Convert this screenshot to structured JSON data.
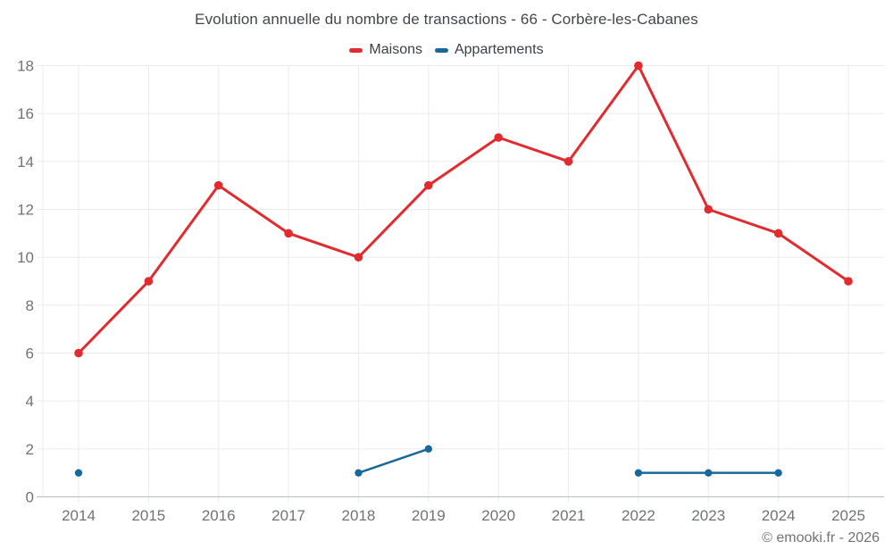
{
  "chart_data": {
    "type": "line",
    "title": "Evolution annuelle du nombre de transactions - 66 - Corbère-les-Cabanes",
    "x": [
      2014,
      2015,
      2016,
      2017,
      2018,
      2019,
      2020,
      2021,
      2022,
      2023,
      2024,
      2025
    ],
    "series": [
      {
        "name": "Maisons",
        "color": "#e12b2e",
        "values": [
          6,
          9,
          13,
          11,
          10,
          13,
          15,
          14,
          18,
          12,
          11,
          9
        ]
      },
      {
        "name": "Appartements",
        "color": "#17699b",
        "values": [
          1,
          null,
          null,
          null,
          1,
          2,
          null,
          null,
          1,
          1,
          1,
          null
        ]
      }
    ],
    "ylim": [
      0,
      18
    ],
    "yticks": [
      0,
      2,
      4,
      6,
      8,
      10,
      12,
      14,
      16,
      18
    ],
    "grid": true,
    "legend_position": "top",
    "xlabel": "",
    "ylabel": ""
  },
  "legend": {
    "items": [
      {
        "label": "Maisons"
      },
      {
        "label": "Appartements"
      }
    ]
  },
  "footer": {
    "copyright": "© emooki.fr - 2026"
  },
  "colors": {
    "maisons": "#e12b2e",
    "appartements": "#17699b",
    "gridline": "#ebebeb",
    "baseline": "#b9bcbf",
    "axis_label": "#6f7378"
  }
}
